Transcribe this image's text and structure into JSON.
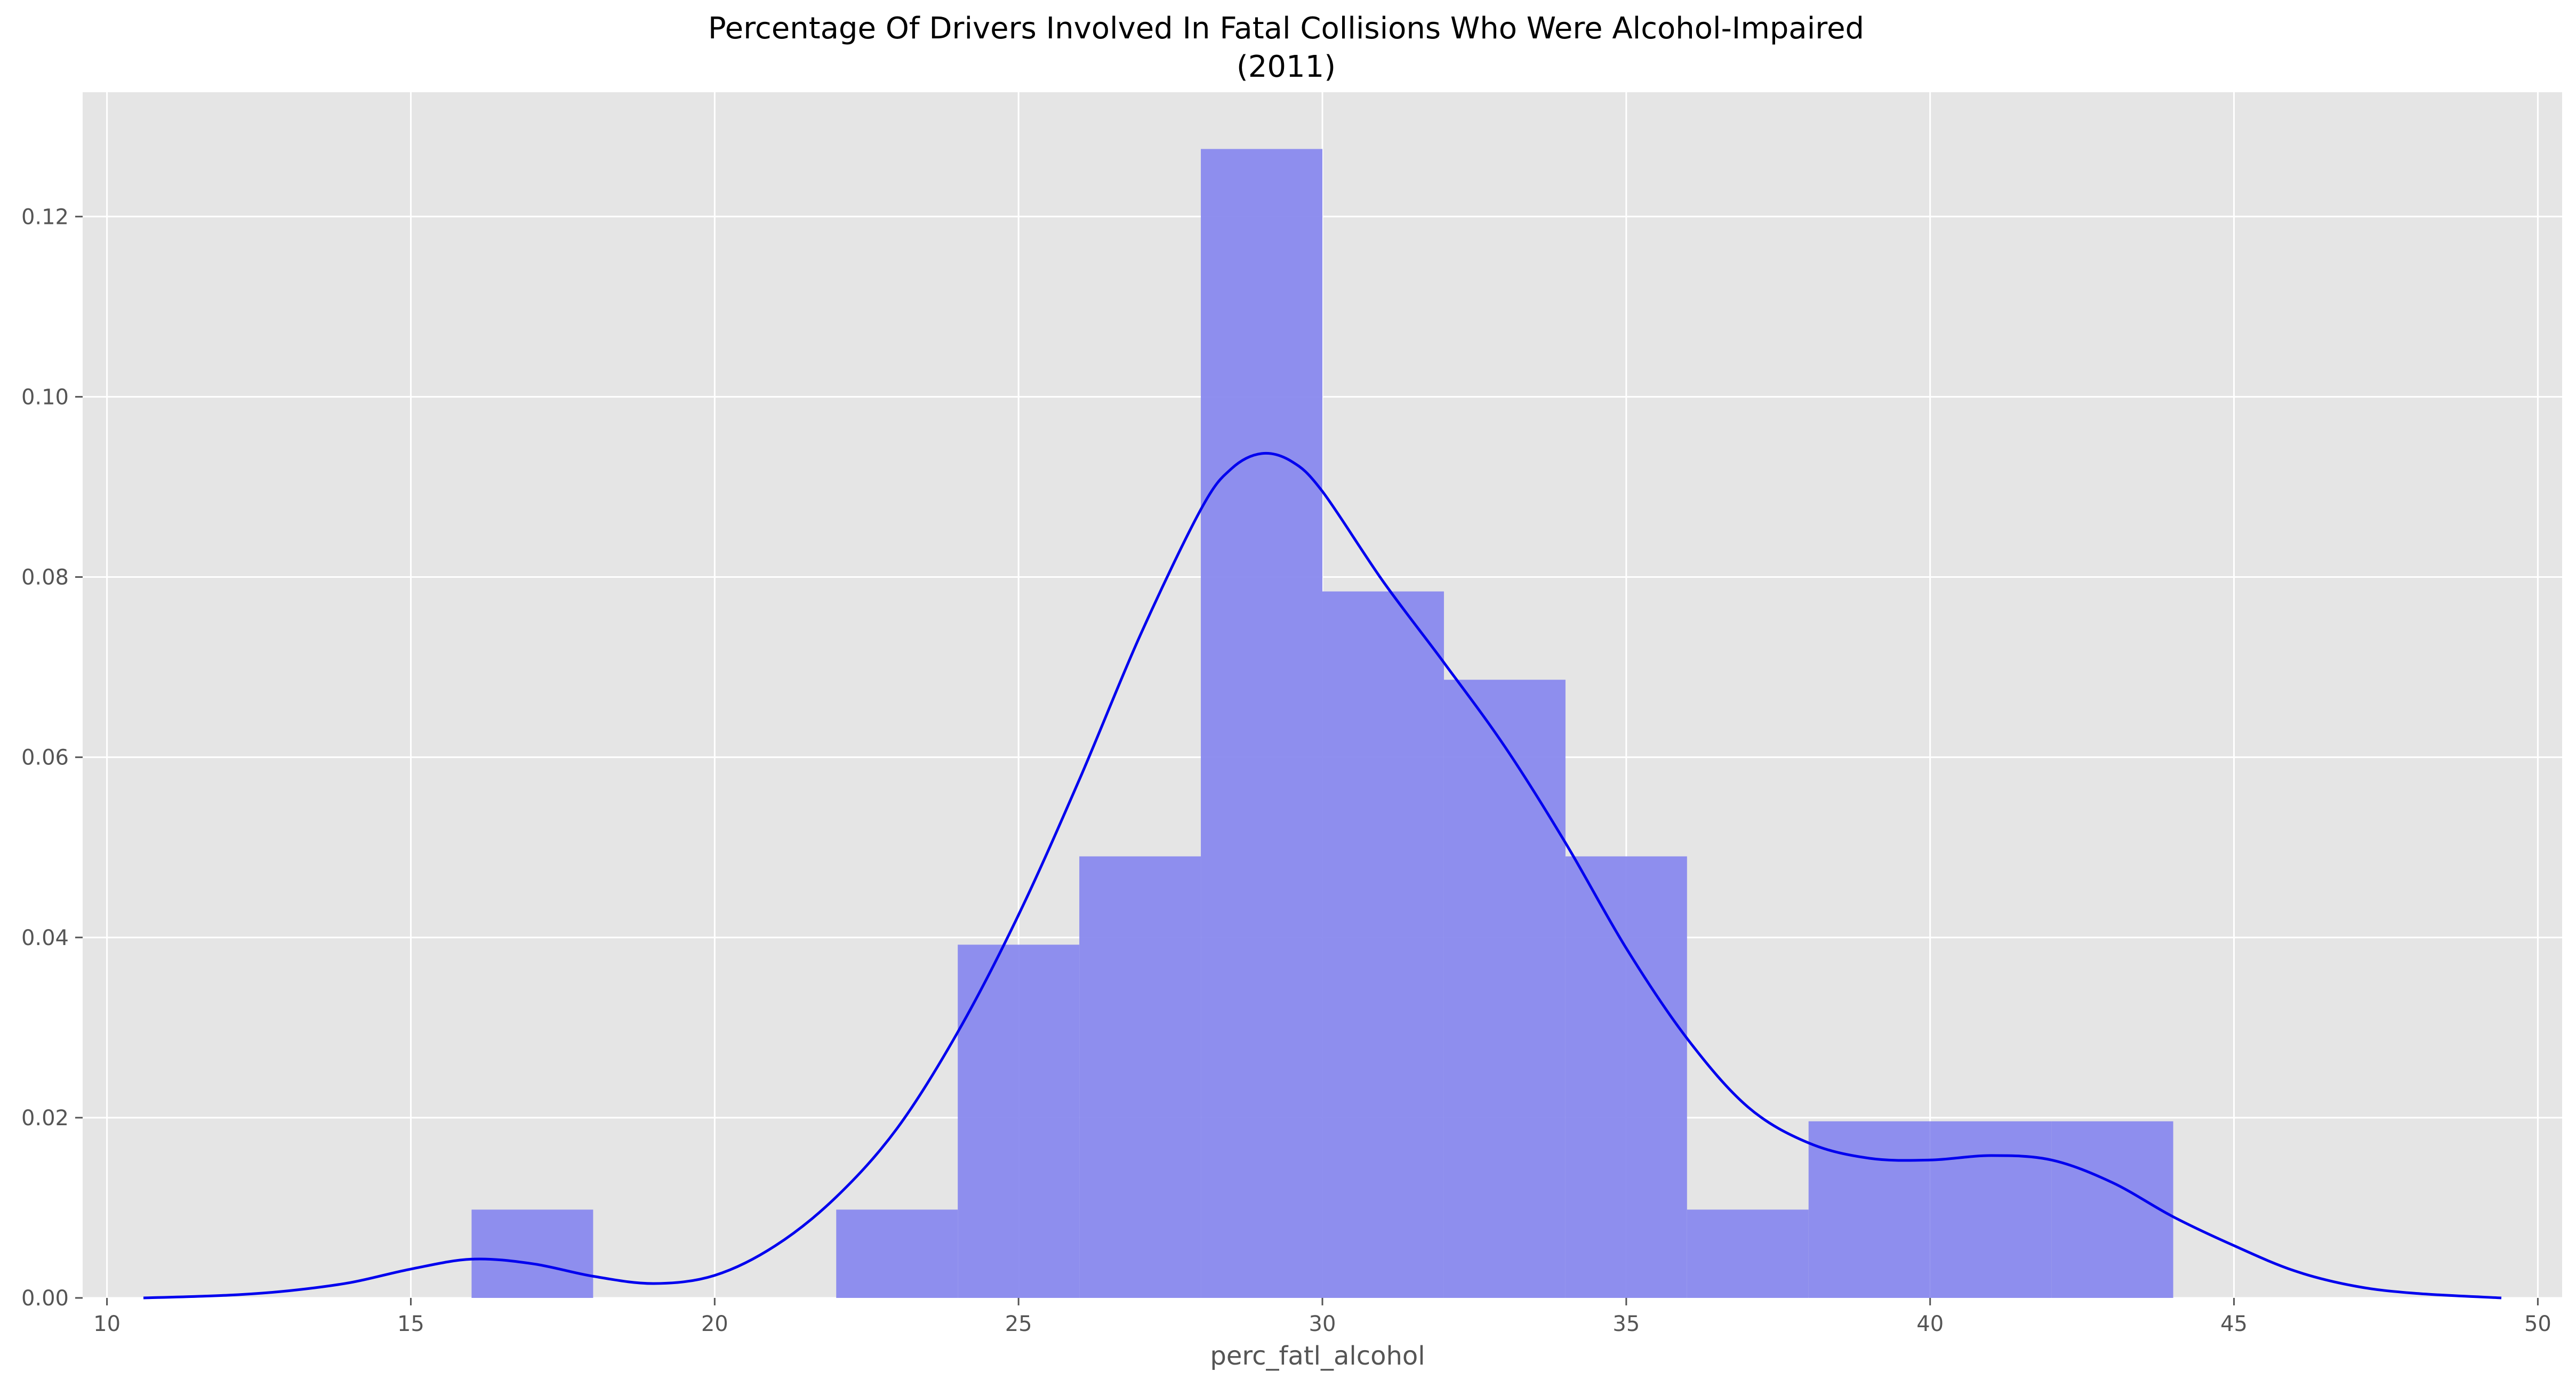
{
  "chart_data": {
    "type": "bar",
    "title": "Percentage Of Drivers Involved In Fatal Collisions Who Were Alcohol-Impaired",
    "subtitle": "(2011)",
    "xlabel": "perc_fatl_alcohol",
    "ylabel": "",
    "xlim": [
      9.6,
      50.4
    ],
    "ylim": [
      0,
      0.1338
    ],
    "grid": true,
    "xticks": [
      10,
      15,
      20,
      25,
      30,
      35,
      40,
      45,
      50
    ],
    "yticks": [
      0.0,
      0.02,
      0.04,
      0.06,
      0.08,
      0.1,
      0.12
    ],
    "ytick_labels": [
      "0.00",
      "0.02",
      "0.04",
      "0.06",
      "0.08",
      "0.10",
      "0.12"
    ],
    "histogram": {
      "bins": [
        {
          "x0": 16,
          "x1": 18,
          "density": 0.0098
        },
        {
          "x0": 22,
          "x1": 24,
          "density": 0.0098
        },
        {
          "x0": 24,
          "x1": 26,
          "density": 0.0392
        },
        {
          "x0": 26,
          "x1": 28,
          "density": 0.049
        },
        {
          "x0": 28,
          "x1": 30,
          "density": 0.1275
        },
        {
          "x0": 30,
          "x1": 32,
          "density": 0.0784
        },
        {
          "x0": 32,
          "x1": 34,
          "density": 0.0686
        },
        {
          "x0": 34,
          "x1": 36,
          "density": 0.049
        },
        {
          "x0": 36,
          "x1": 38,
          "density": 0.0098
        },
        {
          "x0": 38,
          "x1": 40,
          "density": 0.0196
        },
        {
          "x0": 40,
          "x1": 42,
          "density": 0.0196
        },
        {
          "x0": 42,
          "x1": 44,
          "density": 0.0196
        }
      ]
    },
    "kde": {
      "x": [
        10.6,
        12,
        13,
        14,
        15,
        16,
        17,
        18,
        19,
        20,
        21,
        22,
        23,
        24,
        25,
        26,
        27,
        28,
        28.5,
        29,
        29.5,
        30,
        31,
        32,
        33,
        34,
        35,
        36,
        37,
        38,
        39,
        40,
        41,
        42,
        43,
        44,
        45,
        46,
        47,
        48,
        49.4
      ],
      "y": [
        0.0,
        0.0003,
        0.0008,
        0.0017,
        0.0032,
        0.0043,
        0.0038,
        0.0024,
        0.0016,
        0.0025,
        0.0058,
        0.0112,
        0.0188,
        0.0295,
        0.0425,
        0.0575,
        0.0735,
        0.0875,
        0.092,
        0.0937,
        0.0928,
        0.0895,
        0.0795,
        0.0705,
        0.0612,
        0.0505,
        0.0388,
        0.0288,
        0.0212,
        0.0172,
        0.0155,
        0.0153,
        0.0158,
        0.0153,
        0.0128,
        0.009,
        0.0058,
        0.003,
        0.0013,
        0.0005,
        0.0
      ]
    },
    "colors": {
      "bar": "#8a8aee",
      "kde": "#0000ee",
      "plot_background": "#e5e5e5",
      "grid": "#ffffff",
      "text": "#555555",
      "title": "#000000"
    }
  }
}
